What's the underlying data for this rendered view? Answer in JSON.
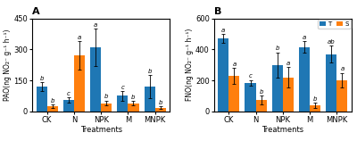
{
  "chart_data": [
    {
      "type": "bar",
      "title": "A",
      "xlabel": "Treatments",
      "ylabel": "PAO(ng NO₂⁻ g⁻¹ h⁻¹)",
      "categories": [
        "CK",
        "N",
        "NPK",
        "M",
        "MNPK"
      ],
      "series": [
        {
          "values": [
            120,
            55,
            310,
            75,
            120
          ],
          "errors": [
            22,
            12,
            90,
            22,
            55
          ],
          "annotations": [
            "b",
            "c",
            "a",
            "c",
            "b"
          ]
        },
        {
          "values": [
            25,
            270,
            40,
            40,
            18
          ],
          "errors": [
            8,
            70,
            12,
            10,
            5
          ],
          "annotations": [
            "b",
            "a",
            "b",
            "b",
            "b"
          ]
        }
      ],
      "ylim": [
        0,
        450
      ],
      "yticks": [
        0,
        150,
        300,
        450
      ]
    },
    {
      "type": "bar",
      "title": "B",
      "xlabel": "Treatments",
      "ylabel": "FNO(ng NO₂⁻ g⁻¹ h⁻¹)",
      "categories": [
        "CK",
        "N",
        "NPK",
        "M",
        "MNPK"
      ],
      "series": [
        {
          "name": "T",
          "values": [
            470,
            185,
            300,
            415,
            370
          ],
          "errors": [
            28,
            18,
            80,
            38,
            52
          ],
          "annotations": [
            "a",
            "c",
            "b",
            "a",
            "ab"
          ]
        },
        {
          "name": "S",
          "values": [
            230,
            75,
            220,
            38,
            200
          ],
          "errors": [
            50,
            28,
            65,
            18,
            48
          ],
          "annotations": [
            "a",
            "b",
            "a",
            "b",
            "a"
          ]
        }
      ],
      "ylim": [
        0,
        600
      ],
      "yticks": [
        0,
        200,
        400,
        600
      ],
      "legend": "upper right"
    }
  ]
}
